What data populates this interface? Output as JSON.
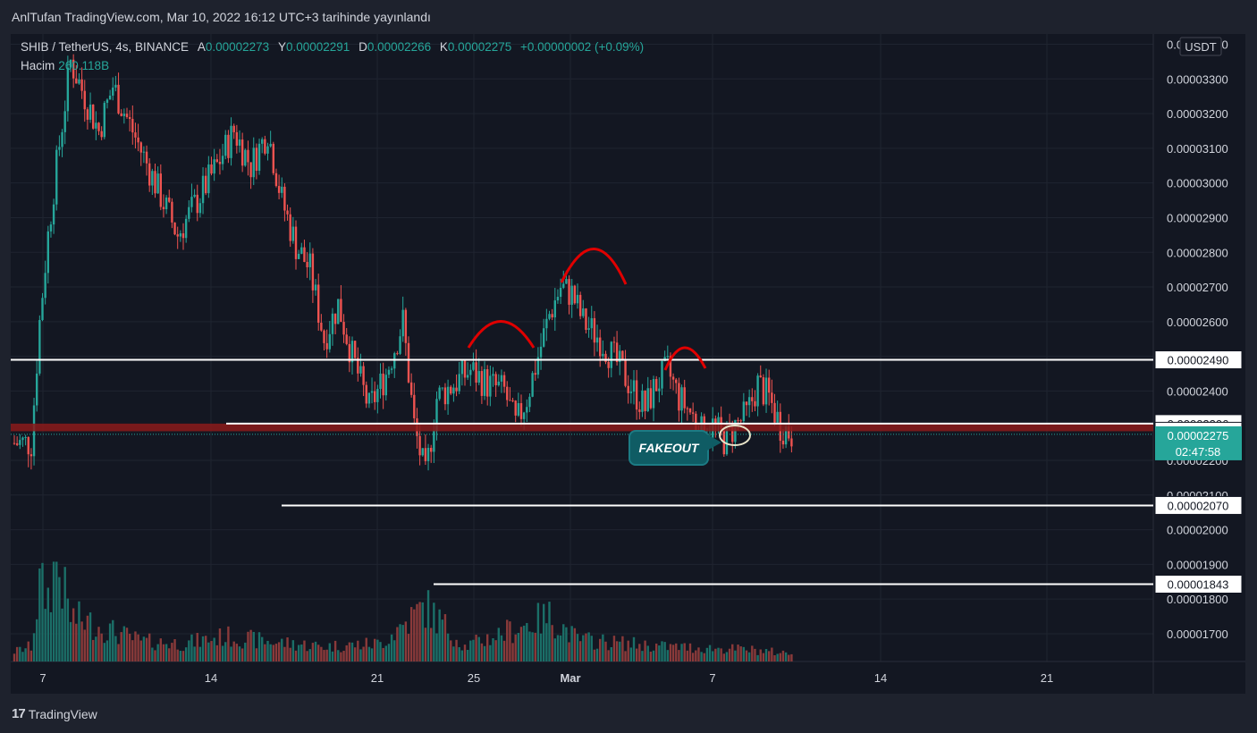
{
  "header": {
    "published_text": "AnlTufan TradingView.com, Mar 10, 2022 16:12 UTC+3 tarihinde yayınlandı"
  },
  "legend": {
    "symbol": "SHIB / TetherUS, 4s, BINANCE",
    "open_label": "A",
    "open_value": "0.00002273",
    "high_label": "Y",
    "high_value": "0.00002291",
    "low_label": "D",
    "low_value": "0.00002266",
    "close_label": "K",
    "close_value": "0.00002275",
    "change": "+0.00000002 (+0.09%)",
    "volume_label": "Hacim",
    "volume_value": "260.118B"
  },
  "annotation": {
    "fakeout_label": "FAKEOUT"
  },
  "footer": {
    "brand": "TradingView",
    "logo": "17"
  },
  "colors": {
    "up": "#26a69a",
    "down": "#ef5350",
    "background": "#131722",
    "frame": "#1e222d",
    "level_line": "#ffffff",
    "band": "#8b1a1a",
    "arc": "#e00000"
  },
  "chart_data": {
    "type": "candlestick",
    "pair": "SHIB/USDT",
    "currency_label": "USDT",
    "y_unit": "USDT",
    "ylim": [
      1.62e-05,
      3.44e-05
    ],
    "y_ticks": [
      "0.00003400",
      "0.00003300",
      "0.00003200",
      "0.00003100",
      "0.00003000",
      "0.00002900",
      "0.00002800",
      "0.00002700",
      "0.00002600",
      "0.00002500",
      "0.00002400",
      "0.00002300",
      "0.00002200",
      "0.00002100",
      "0.00002000",
      "0.00001900",
      "0.00001800",
      "0.00001700"
    ],
    "x_ticks": [
      "7",
      "14",
      "21",
      "25",
      "Mar",
      "7",
      "14",
      "21"
    ],
    "price_levels": [
      {
        "value": 2.49e-05,
        "label": "0.00002490"
      },
      {
        "value": 2.306e-05,
        "label": "0.00002306"
      },
      {
        "value": 2.284e-05,
        "label": "0.00002284"
      },
      {
        "value": 2.07e-05,
        "label": "0.00002070"
      },
      {
        "value": 1.843e-05,
        "label": "0.00001843"
      }
    ],
    "current_price": {
      "value": 2.275e-05,
      "label": "0.00002275",
      "countdown": "02:47:58"
    },
    "close_path": [
      {
        "t": 0,
        "c": 2.25e-05
      },
      {
        "t": 6,
        "c": 2.25e-05
      },
      {
        "t": 9,
        "c": 2.6e-05
      },
      {
        "t": 12,
        "c": 2.85e-05
      },
      {
        "t": 15,
        "c": 3.05e-05
      },
      {
        "t": 20,
        "c": 3.35e-05
      },
      {
        "t": 25,
        "c": 3.25e-05
      },
      {
        "t": 30,
        "c": 3.15e-05
      },
      {
        "t": 35,
        "c": 3.28e-05
      },
      {
        "t": 42,
        "c": 3.15e-05
      },
      {
        "t": 50,
        "c": 3e-05
      },
      {
        "t": 58,
        "c": 2.85e-05
      },
      {
        "t": 65,
        "c": 2.95e-05
      },
      {
        "t": 72,
        "c": 3.05e-05
      },
      {
        "t": 78,
        "c": 3.15e-05
      },
      {
        "t": 84,
        "c": 3.05e-05
      },
      {
        "t": 90,
        "c": 3.15e-05
      },
      {
        "t": 95,
        "c": 2.95e-05
      },
      {
        "t": 100,
        "c": 2.82e-05
      },
      {
        "t": 105,
        "c": 2.75e-05
      },
      {
        "t": 110,
        "c": 2.55e-05
      },
      {
        "t": 115,
        "c": 2.65e-05
      },
      {
        "t": 120,
        "c": 2.5e-05
      },
      {
        "t": 126,
        "c": 2.35e-05
      },
      {
        "t": 132,
        "c": 2.45e-05
      },
      {
        "t": 138,
        "c": 2.6e-05
      },
      {
        "t": 142,
        "c": 2.3e-05
      },
      {
        "t": 146,
        "c": 2.15e-05
      },
      {
        "t": 150,
        "c": 2.38e-05
      },
      {
        "t": 156,
        "c": 2.42e-05
      },
      {
        "t": 162,
        "c": 2.46e-05
      },
      {
        "t": 168,
        "c": 2.42e-05
      },
      {
        "t": 174,
        "c": 2.4e-05
      },
      {
        "t": 178,
        "c": 2.3e-05
      },
      {
        "t": 182,
        "c": 2.38e-05
      },
      {
        "t": 186,
        "c": 2.5e-05
      },
      {
        "t": 190,
        "c": 2.62e-05
      },
      {
        "t": 194,
        "c": 2.7e-05
      },
      {
        "t": 198,
        "c": 2.68e-05
      },
      {
        "t": 202,
        "c": 2.6e-05
      },
      {
        "t": 208,
        "c": 2.55e-05
      },
      {
        "t": 214,
        "c": 2.48e-05
      },
      {
        "t": 220,
        "c": 2.4e-05
      },
      {
        "t": 224,
        "c": 2.35e-05
      },
      {
        "t": 228,
        "c": 2.42e-05
      },
      {
        "t": 232,
        "c": 2.46e-05
      },
      {
        "t": 236,
        "c": 2.38e-05
      },
      {
        "t": 240,
        "c": 2.34e-05
      },
      {
        "t": 244,
        "c": 2.28e-05
      },
      {
        "t": 248,
        "c": 2.3e-05
      },
      {
        "t": 252,
        "c": 2.26e-05
      },
      {
        "t": 256,
        "c": 2.3e-05
      },
      {
        "t": 260,
        "c": 2.33e-05
      },
      {
        "t": 264,
        "c": 2.42e-05
      },
      {
        "t": 268,
        "c": 2.38e-05
      },
      {
        "t": 272,
        "c": 2.3e-05
      },
      {
        "t": 276,
        "c": 2.275e-05
      }
    ],
    "volume_profile": [
      {
        "t": 0,
        "v": 0.1
      },
      {
        "t": 6,
        "v": 0.15
      },
      {
        "t": 9,
        "v": 0.75
      },
      {
        "t": 12,
        "v": 0.65
      },
      {
        "t": 15,
        "v": 1.0
      },
      {
        "t": 20,
        "v": 0.45
      },
      {
        "t": 30,
        "v": 0.35
      },
      {
        "t": 45,
        "v": 0.2
      },
      {
        "t": 60,
        "v": 0.18
      },
      {
        "t": 75,
        "v": 0.25
      },
      {
        "t": 90,
        "v": 0.2
      },
      {
        "t": 110,
        "v": 0.15
      },
      {
        "t": 130,
        "v": 0.18
      },
      {
        "t": 146,
        "v": 0.55
      },
      {
        "t": 160,
        "v": 0.15
      },
      {
        "t": 190,
        "v": 0.45
      },
      {
        "t": 200,
        "v": 0.22
      },
      {
        "t": 230,
        "v": 0.15
      },
      {
        "t": 260,
        "v": 0.12
      },
      {
        "t": 276,
        "v": 0.08
      }
    ],
    "patterns": "head-and-shoulders arcs drawn over the left shoulder, head and right shoulder; fakeout below the red support band"
  }
}
